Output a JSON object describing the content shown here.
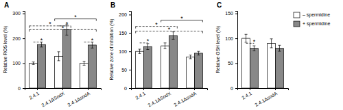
{
  "chart_data": [
    {
      "type": "bar",
      "title": "A",
      "ylabel": "Relative ROS level (%)",
      "categories": [
        "2.4.1",
        "2.4.1ΔSodX",
        "2.4.1ΔsodA"
      ],
      "series": [
        {
          "name": "– spermidine",
          "color": "#FFFFFF",
          "values": [
            100,
            128,
            100
          ],
          "errors": [
            5,
            18,
            8
          ]
        },
        {
          "name": "+ spermidine",
          "color": "#888888",
          "values": [
            175,
            235,
            173
          ],
          "errors": [
            10,
            22,
            12
          ]
        }
      ],
      "ylim": [
        0,
        310
      ],
      "yticks": [
        0,
        100,
        200,
        300
      ],
      "annotations": [
        {
          "text": "*",
          "y": 185,
          "from": "2.4.1",
          "to": "2.4.1",
          "line_style": "dashed"
        },
        {
          "text": "*",
          "y": 250,
          "from": "2.4.1ΔSodX",
          "to": "2.4.1ΔSodX",
          "line_style": "dashed"
        },
        {
          "text": "*",
          "y": 185,
          "from": "2.4.1ΔsodA",
          "to": "2.4.1ΔsodA",
          "line_style": "dashed"
        },
        {
          "text": "*",
          "y": 250,
          "from": "2.4.1",
          "to": "2.4.1ΔSodX",
          "line_style": "dashed"
        },
        {
          "text": "*",
          "y": 235,
          "from": "2.4.1",
          "to": "2.4.1ΔsodA",
          "line_style": "dashed"
        },
        {
          "text": "*",
          "y": 278,
          "from": "2.4.1ΔSodX",
          "to": "2.4.1ΔsodA",
          "line_style": "solid"
        }
      ]
    },
    {
      "type": "bar",
      "title": "B",
      "ylabel": "Relative zone of inhibition (%)",
      "categories": [
        "2.4.1",
        "2.4.1ΔSodX",
        "2.4.1ΔsodA"
      ],
      "series": [
        {
          "name": "– spermidine",
          "color": "#FFFFFF",
          "values": [
            100,
            115,
            85
          ],
          "errors": [
            6,
            8,
            5
          ]
        },
        {
          "name": "+ spermidine",
          "color": "#888888",
          "values": [
            113,
            143,
            95
          ],
          "errors": [
            8,
            10,
            5
          ]
        }
      ],
      "ylim": [
        0,
        210
      ],
      "yticks": [
        0,
        50,
        100,
        150,
        200
      ],
      "annotations": [
        {
          "text": "*",
          "y": 123,
          "from": "2.4.1",
          "to": "2.4.1",
          "line_style": "dashed"
        },
        {
          "text": "*",
          "y": 168,
          "from": "2.4.1",
          "to": "2.4.1ΔSodX",
          "line_style": "dashed"
        },
        {
          "text": "*",
          "y": 155,
          "from": "2.4.1",
          "to": "2.4.1ΔsodA",
          "line_style": "dashed"
        },
        {
          "text": "*",
          "y": 185,
          "from": "2.4.1ΔSodX",
          "to": "2.4.1ΔsodA",
          "line_style": "solid"
        }
      ]
    },
    {
      "type": "bar",
      "title": "C",
      "ylabel": "Relative GSH level (%)",
      "categories": [
        "2.4.1",
        "2.4.1ΔsodA"
      ],
      "series": [
        {
          "name": "– spermidine",
          "color": "#FFFFFF",
          "values": [
            100,
            90
          ],
          "errors": [
            8,
            9
          ]
        },
        {
          "name": "+ spermidine",
          "color": "#888888",
          "values": [
            80,
            80
          ],
          "errors": [
            5,
            6
          ]
        }
      ],
      "ylim": [
        0,
        155
      ],
      "yticks": [
        0,
        50,
        100,
        150
      ],
      "annotations": [
        {
          "text": "*",
          "y": 90,
          "from": "2.4.1",
          "to": "2.4.1",
          "line_style": "dashed"
        }
      ],
      "legend": "right"
    }
  ]
}
